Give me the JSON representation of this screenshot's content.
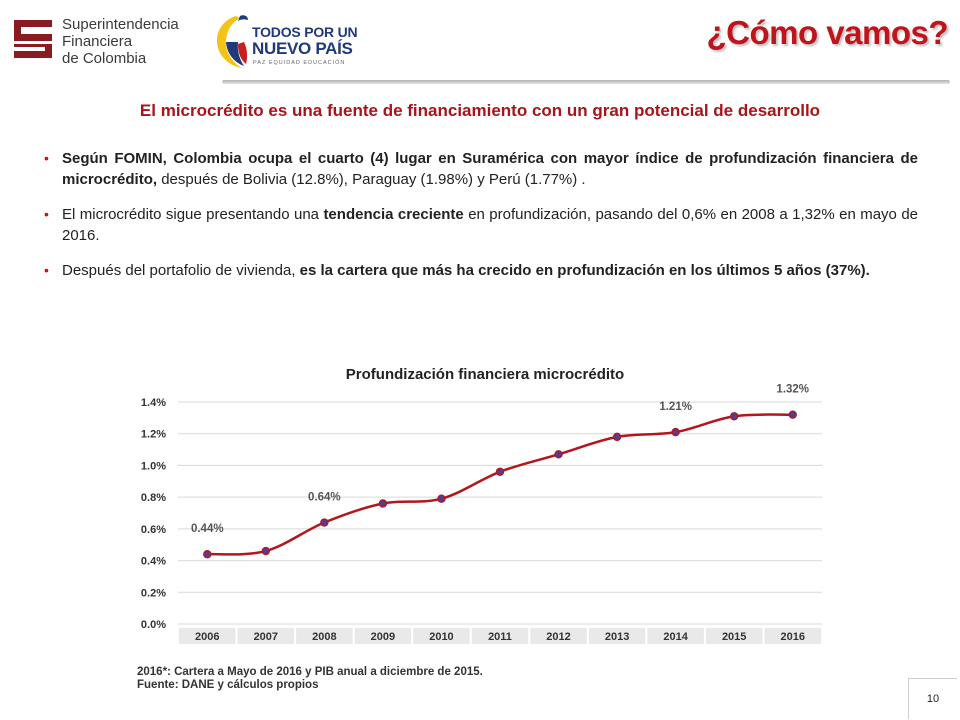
{
  "header": {
    "org_logo_lines": [
      "Superintendencia",
      "Financiera",
      "de Colombia"
    ],
    "gov_logo": {
      "line1": "TODOS POR UN",
      "line2": "NUEVO PAÍS",
      "line3": "PAZ  EQUIDAD  EDUCACIÓN"
    },
    "title": "¿Cómo vamos?"
  },
  "subtitle": "El microcrédito es una fuente de financiamiento con un gran potencial de desarrollo",
  "bullets": [
    {
      "bold": "Según FOMIN, Colombia ocupa el cuarto (4) lugar en Suramérica con mayor índice de profundización financiera de microcrédito,",
      "rest": " después de Bolivia (12.8%), Paraguay  (1.98%) y Perú (1.77%) ."
    },
    {
      "pre": "El microcrédito sigue presentando una ",
      "bold": "tendencia creciente",
      "post": " en profundización, pasando del 0,6% en 2008 a 1,32% en mayo de 2016."
    },
    {
      "pre": "Después del portafolio de vivienda, ",
      "bold": "es la cartera que más ha crecido en profundización en los últimos 5 años (37%)."
    }
  ],
  "chart_data": {
    "type": "line",
    "title": "Profundización financiera microcrédito",
    "categories": [
      "2006",
      "2007",
      "2008",
      "2009",
      "2010",
      "2011",
      "2012",
      "2013",
      "2014",
      "2015",
      "2016"
    ],
    "values": [
      0.44,
      0.46,
      0.64,
      0.76,
      0.79,
      0.96,
      1.07,
      1.18,
      1.21,
      1.31,
      1.32
    ],
    "y_ticks": [
      "0.0%",
      "0.2%",
      "0.4%",
      "0.6%",
      "0.8%",
      "1.0%",
      "1.2%",
      "1.4%"
    ],
    "ylim": [
      0,
      1.4
    ],
    "grid": true,
    "data_labels": [
      {
        "category": "2006",
        "text": "0.44%"
      },
      {
        "category": "2008",
        "text": "0.64%"
      },
      {
        "category": "2014",
        "text": "1.21%"
      },
      {
        "category": "2016",
        "text": "1.32%"
      }
    ],
    "colors": {
      "line": "#b3161c",
      "marker": "#5a3a8a",
      "grid": "#d9d9d9"
    }
  },
  "notes": [
    "2016*: Cartera a Mayo de 2016 y PIB anual a diciembre de 2015.",
    "Fuente: DANE y cálculos propios"
  ],
  "page_number": "10"
}
